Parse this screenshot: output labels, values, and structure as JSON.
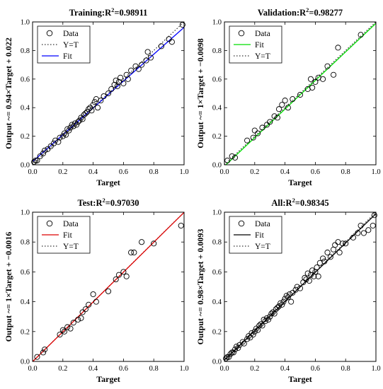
{
  "chart_data": [
    {
      "type": "scatter",
      "title": "Training:R",
      "title_sup": "2",
      "title_value": "=0.98911",
      "xlabel": "Target",
      "ylabel": "Output ~= 0.94×Target + 0.022",
      "xlim": [
        0,
        1
      ],
      "ylim": [
        0,
        1
      ],
      "xticks": [
        "0.0",
        "0.2",
        "0.4",
        "0.6",
        "0.8",
        "1.0"
      ],
      "yticks": [
        "0.0",
        "0.2",
        "0.4",
        "0.6",
        "0.8",
        "1.0"
      ],
      "fit": {
        "slope": 0.94,
        "intercept": 0.022,
        "color": "#0000ff"
      },
      "legend": [
        "Data",
        "Y=T",
        "Fit"
      ],
      "legend_order": [
        "data",
        "yt",
        "fit"
      ],
      "x": [
        0.01,
        0.02,
        0.03,
        0.05,
        0.07,
        0.08,
        0.1,
        0.12,
        0.14,
        0.15,
        0.17,
        0.18,
        0.2,
        0.21,
        0.22,
        0.23,
        0.24,
        0.25,
        0.26,
        0.27,
        0.28,
        0.29,
        0.3,
        0.31,
        0.32,
        0.33,
        0.34,
        0.35,
        0.36,
        0.37,
        0.38,
        0.39,
        0.4,
        0.41,
        0.42,
        0.43,
        0.45,
        0.47,
        0.5,
        0.52,
        0.54,
        0.55,
        0.56,
        0.57,
        0.58,
        0.6,
        0.62,
        0.63,
        0.65,
        0.68,
        0.7,
        0.72,
        0.75,
        0.76,
        0.78,
        0.85,
        0.9,
        0.92,
        0.99
      ],
      "y": [
        0.02,
        0.03,
        0.03,
        0.06,
        0.08,
        0.1,
        0.11,
        0.13,
        0.15,
        0.17,
        0.16,
        0.19,
        0.2,
        0.22,
        0.21,
        0.25,
        0.24,
        0.26,
        0.28,
        0.27,
        0.29,
        0.28,
        0.3,
        0.31,
        0.33,
        0.32,
        0.35,
        0.36,
        0.37,
        0.39,
        0.4,
        0.38,
        0.42,
        0.44,
        0.46,
        0.4,
        0.45,
        0.48,
        0.5,
        0.53,
        0.56,
        0.59,
        0.55,
        0.58,
        0.61,
        0.57,
        0.63,
        0.6,
        0.66,
        0.69,
        0.67,
        0.7,
        0.73,
        0.79,
        0.75,
        0.83,
        0.88,
        0.86,
        0.98
      ]
    },
    {
      "type": "scatter",
      "title": "Validation:R",
      "title_sup": "2",
      "title_value": "=0.98277",
      "xlabel": "Target",
      "ylabel": "Output ~= 1×Target + −0.0098",
      "xlim": [
        0,
        1
      ],
      "ylim": [
        0,
        1
      ],
      "xticks": [
        "0.0",
        "0.2",
        "0.4",
        "0.6",
        "0.8",
        "1.0"
      ],
      "yticks": [
        "0.0",
        "0.2",
        "0.4",
        "0.6",
        "0.8",
        "1.0"
      ],
      "fit": {
        "slope": 1.0,
        "intercept": -0.0098,
        "color": "#00dd00"
      },
      "legend": [
        "Data",
        "Fit",
        "Y=T"
      ],
      "legend_order": [
        "data",
        "fit",
        "yt"
      ],
      "x": [
        0.02,
        0.05,
        0.07,
        0.15,
        0.19,
        0.2,
        0.22,
        0.25,
        0.28,
        0.3,
        0.33,
        0.35,
        0.36,
        0.38,
        0.4,
        0.42,
        0.45,
        0.5,
        0.55,
        0.57,
        0.58,
        0.6,
        0.62,
        0.65,
        0.68,
        0.72,
        0.75,
        0.9
      ],
      "y": [
        0.03,
        0.06,
        0.05,
        0.17,
        0.19,
        0.24,
        0.22,
        0.26,
        0.28,
        0.3,
        0.34,
        0.33,
        0.39,
        0.42,
        0.45,
        0.4,
        0.46,
        0.49,
        0.53,
        0.6,
        0.54,
        0.58,
        0.61,
        0.6,
        0.69,
        0.63,
        0.82,
        0.91
      ]
    },
    {
      "type": "scatter",
      "title": "Test:R",
      "title_sup": "2",
      "title_value": "=0.97030",
      "xlabel": "Target",
      "ylabel": "Output ~= 1×Target + −0.0016",
      "xlim": [
        0,
        1
      ],
      "ylim": [
        0,
        1
      ],
      "xticks": [
        "0.0",
        "0.2",
        "0.4",
        "0.6",
        "0.8",
        "1.0"
      ],
      "yticks": [
        "0.0",
        "0.2",
        "0.4",
        "0.6",
        "0.8",
        "1.0"
      ],
      "fit": {
        "slope": 1.0,
        "intercept": -0.0016,
        "color": "#dd0000"
      },
      "legend": [
        "Data",
        "Fit",
        "Y=T"
      ],
      "legend_order": [
        "data",
        "fit",
        "yt"
      ],
      "x": [
        0.03,
        0.07,
        0.08,
        0.18,
        0.2,
        0.21,
        0.23,
        0.25,
        0.27,
        0.3,
        0.32,
        0.33,
        0.35,
        0.37,
        0.4,
        0.42,
        0.5,
        0.55,
        0.57,
        0.6,
        0.62,
        0.65,
        0.67,
        0.72,
        0.8,
        0.98
      ],
      "y": [
        0.03,
        0.06,
        0.08,
        0.18,
        0.21,
        0.2,
        0.23,
        0.22,
        0.26,
        0.28,
        0.29,
        0.33,
        0.35,
        0.38,
        0.45,
        0.4,
        0.47,
        0.55,
        0.58,
        0.6,
        0.57,
        0.73,
        0.73,
        0.8,
        0.79,
        0.91
      ]
    },
    {
      "type": "scatter",
      "title": "All:R",
      "title_sup": "2",
      "title_value": "=0.98345",
      "xlabel": "Target",
      "ylabel": "Output ~= 0.98×Target + 0.0093",
      "xlim": [
        0,
        1
      ],
      "ylim": [
        0,
        1
      ],
      "xticks": [
        "0.0",
        "0.2",
        "0.4",
        "0.6",
        "0.8",
        "1.0"
      ],
      "yticks": [
        "0.0",
        "0.2",
        "0.4",
        "0.6",
        "0.8",
        "1.0"
      ],
      "fit": {
        "slope": 0.98,
        "intercept": 0.0093,
        "color": "#000000"
      },
      "legend": [
        "Data",
        "Fit",
        "Y=T"
      ],
      "legend_order": [
        "data",
        "fit",
        "yt"
      ],
      "x": [
        0.01,
        0.02,
        0.03,
        0.04,
        0.05,
        0.06,
        0.07,
        0.08,
        0.09,
        0.1,
        0.12,
        0.13,
        0.15,
        0.16,
        0.17,
        0.18,
        0.19,
        0.2,
        0.21,
        0.22,
        0.23,
        0.24,
        0.25,
        0.26,
        0.27,
        0.28,
        0.29,
        0.3,
        0.31,
        0.32,
        0.33,
        0.34,
        0.35,
        0.36,
        0.37,
        0.38,
        0.39,
        0.4,
        0.41,
        0.42,
        0.43,
        0.44,
        0.45,
        0.47,
        0.48,
        0.5,
        0.52,
        0.53,
        0.54,
        0.55,
        0.56,
        0.57,
        0.58,
        0.59,
        0.6,
        0.61,
        0.62,
        0.63,
        0.65,
        0.66,
        0.68,
        0.7,
        0.72,
        0.73,
        0.75,
        0.76,
        0.78,
        0.8,
        0.85,
        0.88,
        0.9,
        0.92,
        0.95,
        0.98,
        0.99
      ],
      "y": [
        0.02,
        0.03,
        0.03,
        0.05,
        0.06,
        0.06,
        0.08,
        0.1,
        0.09,
        0.11,
        0.13,
        0.12,
        0.15,
        0.17,
        0.16,
        0.19,
        0.18,
        0.2,
        0.22,
        0.21,
        0.24,
        0.25,
        0.24,
        0.28,
        0.27,
        0.29,
        0.28,
        0.3,
        0.32,
        0.33,
        0.32,
        0.35,
        0.36,
        0.37,
        0.39,
        0.38,
        0.4,
        0.42,
        0.44,
        0.43,
        0.45,
        0.4,
        0.46,
        0.48,
        0.5,
        0.49,
        0.53,
        0.56,
        0.55,
        0.59,
        0.54,
        0.58,
        0.61,
        0.57,
        0.6,
        0.63,
        0.57,
        0.66,
        0.69,
        0.67,
        0.73,
        0.7,
        0.75,
        0.78,
        0.8,
        0.73,
        0.79,
        0.79,
        0.83,
        0.86,
        0.91,
        0.86,
        0.88,
        0.91,
        0.98
      ]
    }
  ]
}
